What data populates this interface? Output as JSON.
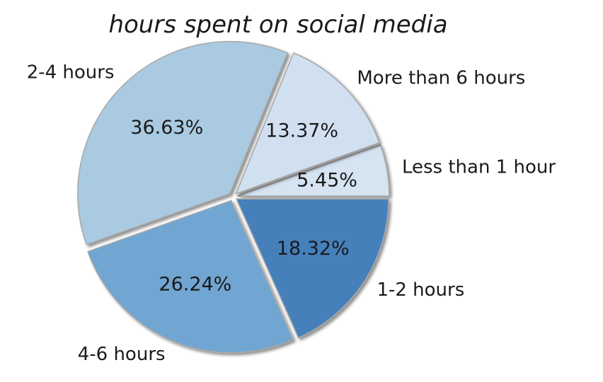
{
  "chart_data": {
    "type": "pie",
    "title": "hours spent on social media",
    "categories": [
      "Less than 1 hour",
      "More than 6 hours",
      "2-4 hours",
      "4-6 hours",
      "1-2 hours"
    ],
    "values": [
      5.45,
      13.37,
      36.63,
      26.24,
      18.32
    ],
    "percent_labels": [
      "5.45%",
      "13.37%",
      "36.63%",
      "26.24%",
      "18.32%"
    ],
    "colors": [
      "#d6e4f2",
      "#d1e0f1",
      "#a9cae1",
      "#6fa6d1",
      "#4480bb"
    ],
    "start_angle": 0,
    "direction": "counterclockwise",
    "exploded": true,
    "shadow": true
  }
}
